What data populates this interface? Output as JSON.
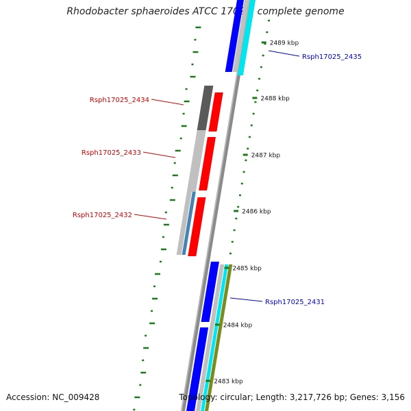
{
  "title": "Rhodobacter sphaeroides ATCC 17025, complete genome",
  "footer": {
    "accession": "Accession: NC_009428",
    "topology": "Topology: circular; Length: 3,217,726 bp; Genes: 3,156"
  },
  "ticks": [
    "2489 kbp",
    "2488 kbp",
    "2487 kbp",
    "2486 kbp",
    "2485 kbp",
    "2484 kbp",
    "2483 kbp"
  ],
  "genes": [
    {
      "name": "Rsph17025_2435",
      "strand": "forward"
    },
    {
      "name": "Rsph17025_2434",
      "strand": "reverse"
    },
    {
      "name": "Rsph17025_2433",
      "strand": "reverse"
    },
    {
      "name": "Rsph17025_2432",
      "strand": "reverse"
    },
    {
      "name": "Rsph17025_2431",
      "strand": "forward"
    }
  ],
  "colors": {
    "forward_label": "#0000cc",
    "reverse_label": "#cc0000",
    "forward_cds": "#0000ff",
    "reverse_cds": "#ff0000",
    "cyan_track": "#00e5ee",
    "olive_track": "#7a8c1e",
    "grey_track": "#c0c0c0",
    "dark_track": "#5a5a5a",
    "steel_track": "#4682b4",
    "tick_color": "#1a7a1a",
    "backbone": "#888888"
  }
}
